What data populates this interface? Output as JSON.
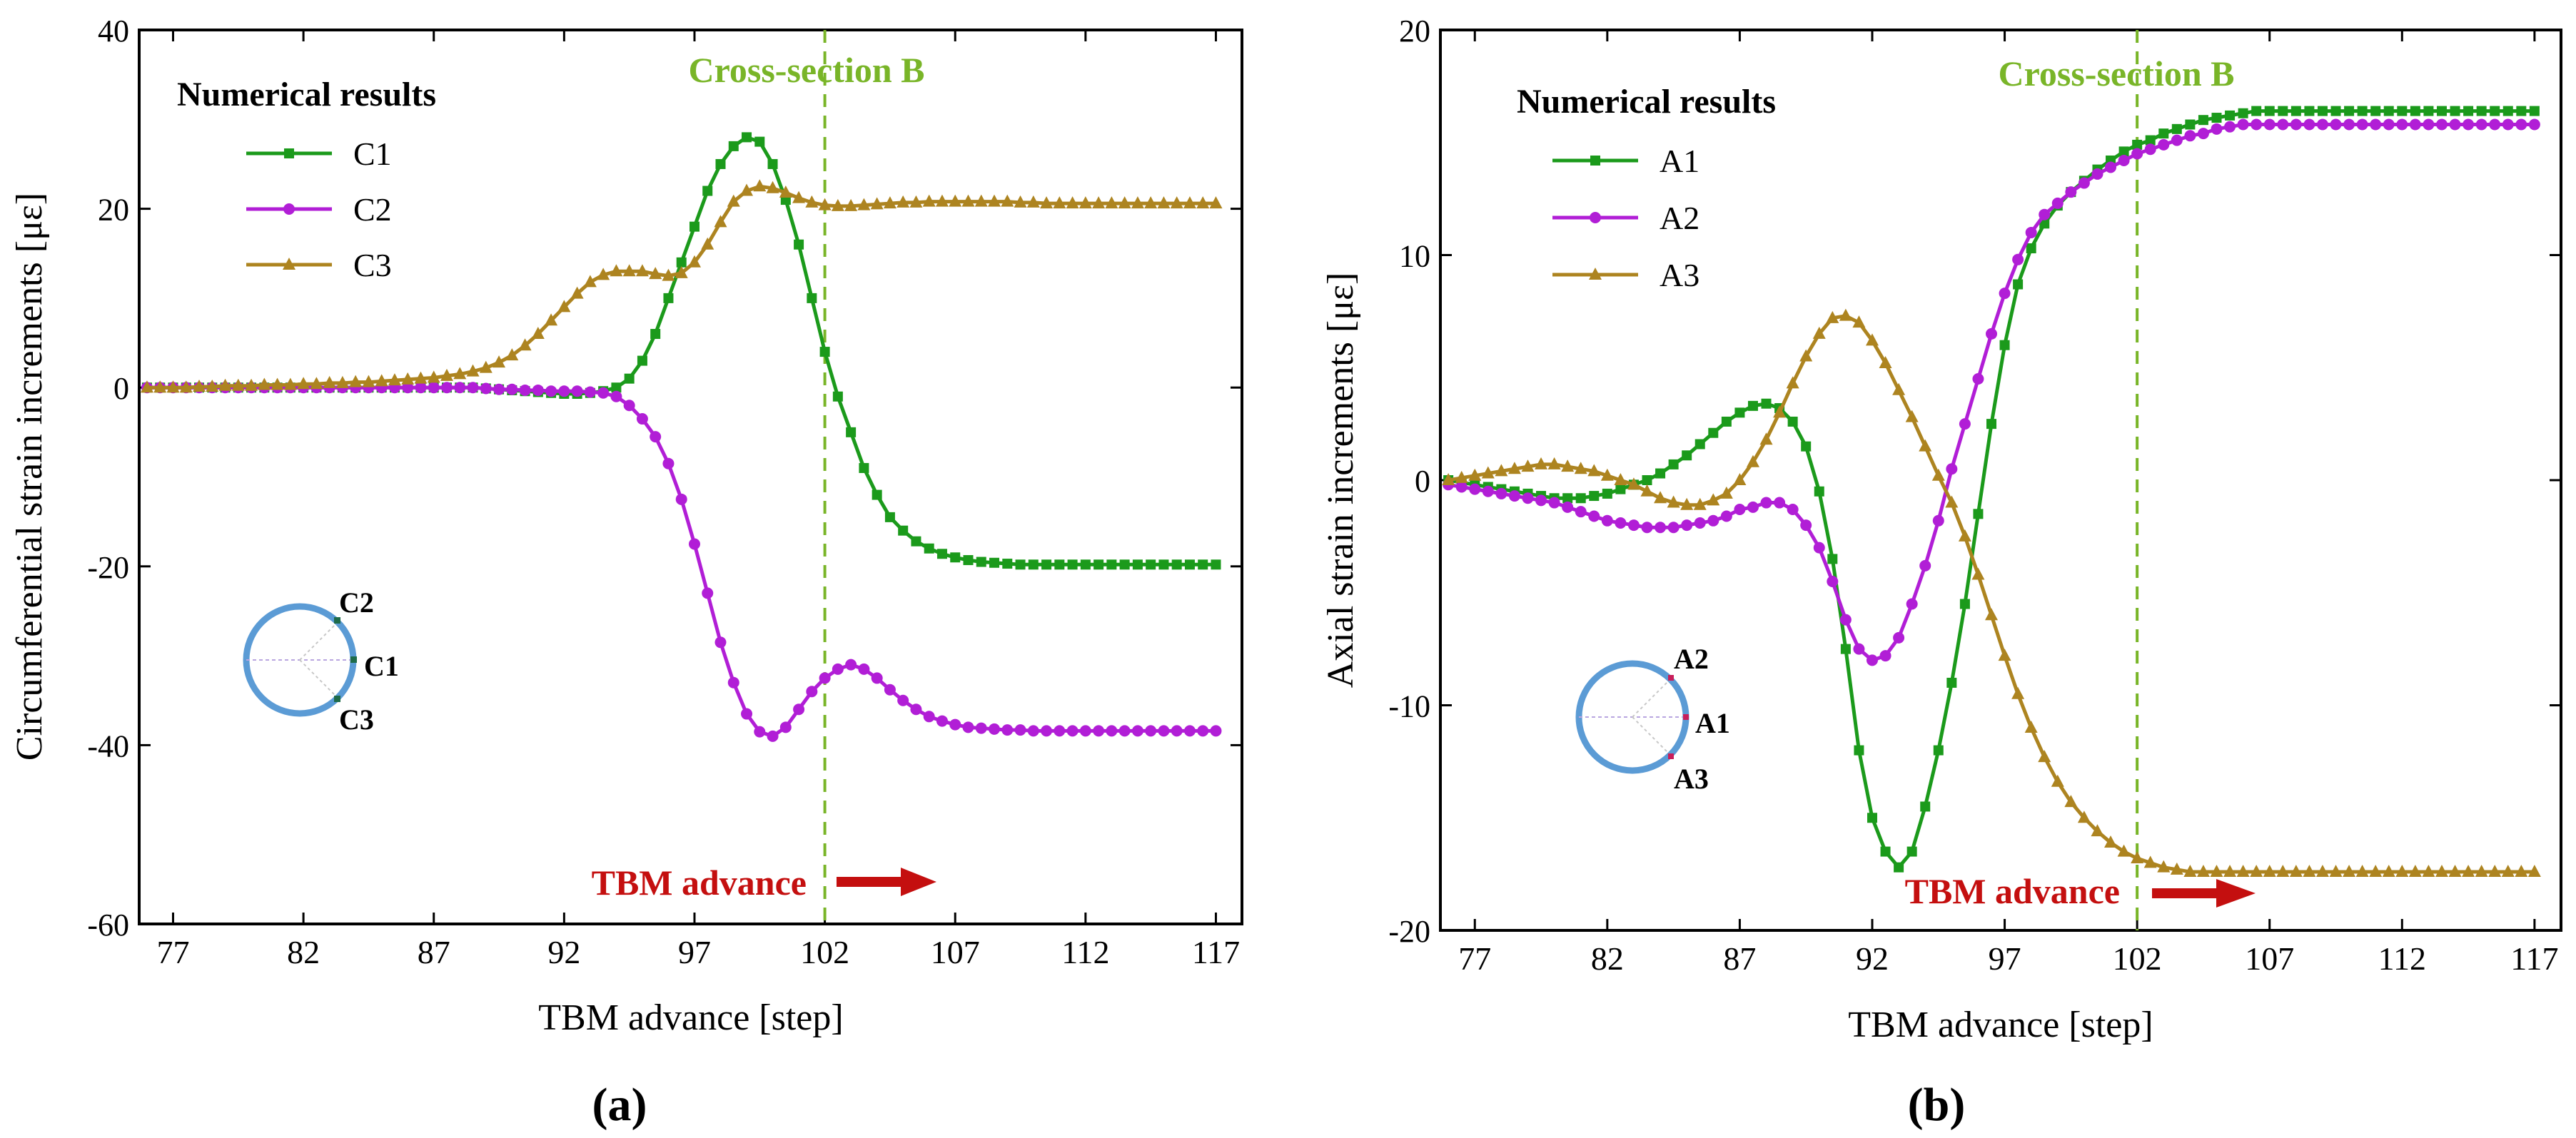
{
  "figure": {
    "panel_a": {
      "label": "(a)",
      "legend_title": "Numerical results",
      "section_label": "Cross-section B",
      "advance_label": "TBM advance",
      "sensors": [
        "C2",
        "C1",
        "C3"
      ]
    },
    "panel_b": {
      "label": "(b)",
      "legend_title": "Numerical results",
      "section_label": "Cross-section B",
      "advance_label": "TBM advance",
      "sensors": [
        "A2",
        "A1",
        "A3"
      ]
    }
  },
  "colors": {
    "green": "#1b9a1b",
    "purple": "#b11ed6",
    "gold": "#ad8420",
    "section_line": "#79b528",
    "arrow": "#c40f0f",
    "ring": "#5b9bd5"
  },
  "chart_data": [
    {
      "type": "line",
      "title": "",
      "xlabel": "TBM advance [step]",
      "ylabel": "Circumferential strain increments  [με]",
      "xlim": [
        75.7,
        118
      ],
      "ylim": [
        -60,
        40
      ],
      "xticks": [
        77,
        82,
        87,
        92,
        97,
        102,
        107,
        112,
        117
      ],
      "yticks": [
        40,
        20,
        0,
        -20,
        -40,
        -60
      ],
      "x_start": 76,
      "x_step": 0.5,
      "vline_x": 102,
      "legend_position": "top-left",
      "series": [
        {
          "name": "C1",
          "marker": "square",
          "color": "#1b9a1b",
          "values": [
            0,
            0,
            0,
            0,
            0,
            0,
            0,
            0,
            0,
            0,
            0,
            0,
            0,
            0,
            0,
            0,
            0,
            0,
            0,
            0,
            0,
            0,
            0,
            0,
            0,
            0,
            -0.1,
            -0.2,
            -0.3,
            -0.4,
            -0.5,
            -0.6,
            -0.7,
            -0.7,
            -0.6,
            -0.4,
            0,
            1,
            3,
            6,
            10,
            14,
            18,
            22,
            25,
            27,
            28,
            27.5,
            25,
            21,
            16,
            10,
            4,
            -1,
            -5,
            -9,
            -12,
            -14.5,
            -16,
            -17.2,
            -18,
            -18.6,
            -19,
            -19.3,
            -19.5,
            -19.6,
            -19.7,
            -19.8,
            -19.8,
            -19.8,
            -19.8,
            -19.8,
            -19.8,
            -19.8,
            -19.8,
            -19.8,
            -19.8,
            -19.8,
            -19.8,
            -19.8,
            -19.8,
            -19.8,
            -19.8
          ]
        },
        {
          "name": "C2",
          "marker": "circle",
          "color": "#b11ed6",
          "values": [
            0,
            0,
            0,
            0,
            0,
            0,
            0,
            0,
            0,
            0,
            0,
            0,
            0,
            0,
            0,
            0,
            0,
            0,
            0,
            0,
            0,
            0,
            0,
            0,
            0,
            0,
            -0.1,
            -0.2,
            -0.2,
            -0.3,
            -0.3,
            -0.4,
            -0.4,
            -0.4,
            -0.5,
            -0.6,
            -1,
            -2,
            -3.5,
            -5.5,
            -8.5,
            -12.5,
            -17.5,
            -23,
            -28.5,
            -33,
            -36.5,
            -38.5,
            -39,
            -38,
            -36,
            -34,
            -32.5,
            -31.5,
            -31,
            -31.5,
            -32.5,
            -33.8,
            -35,
            -36,
            -36.8,
            -37.3,
            -37.7,
            -38,
            -38.1,
            -38.2,
            -38.3,
            -38.3,
            -38.4,
            -38.4,
            -38.4,
            -38.4,
            -38.4,
            -38.4,
            -38.4,
            -38.4,
            -38.4,
            -38.4,
            -38.4,
            -38.4,
            -38.4,
            -38.4,
            -38.4
          ]
        },
        {
          "name": "C3",
          "marker": "triangle",
          "color": "#ad8420",
          "values": [
            0,
            0,
            0,
            0,
            0.1,
            0.1,
            0.2,
            0.2,
            0.2,
            0.3,
            0.3,
            0.3,
            0.4,
            0.4,
            0.5,
            0.5,
            0.6,
            0.6,
            0.7,
            0.8,
            0.9,
            1,
            1.1,
            1.3,
            1.5,
            1.8,
            2.2,
            2.8,
            3.6,
            4.7,
            6,
            7.5,
            9,
            10.5,
            11.8,
            12.6,
            13,
            13,
            13,
            12.7,
            12.5,
            12.8,
            14,
            16,
            18.5,
            20.8,
            22,
            22.5,
            22.3,
            21.8,
            21.2,
            20.7,
            20.4,
            20.3,
            20.3,
            20.4,
            20.5,
            20.6,
            20.7,
            20.7,
            20.8,
            20.8,
            20.8,
            20.8,
            20.8,
            20.8,
            20.8,
            20.7,
            20.7,
            20.6,
            20.6,
            20.6,
            20.6,
            20.6,
            20.6,
            20.6,
            20.6,
            20.6,
            20.6,
            20.6,
            20.6,
            20.6,
            20.6
          ]
        }
      ]
    },
    {
      "type": "line",
      "title": "",
      "xlabel": "TBM advance [step]",
      "ylabel": "Axial strain increments [με]",
      "xlim": [
        75.7,
        118
      ],
      "ylim": [
        -20,
        20
      ],
      "xticks": [
        77,
        82,
        87,
        92,
        97,
        102,
        107,
        112,
        117
      ],
      "yticks": [
        20,
        10,
        0,
        -10,
        -20
      ],
      "x_start": 76,
      "x_step": 0.5,
      "vline_x": 102,
      "legend_position": "top-left",
      "series": [
        {
          "name": "A1",
          "marker": "square",
          "color": "#1b9a1b",
          "values": [
            0,
            -0.1,
            -0.2,
            -0.3,
            -0.4,
            -0.5,
            -0.6,
            -0.7,
            -0.8,
            -0.8,
            -0.8,
            -0.7,
            -0.6,
            -0.4,
            -0.2,
            0,
            0.3,
            0.7,
            1.1,
            1.6,
            2.1,
            2.6,
            3,
            3.3,
            3.4,
            3.2,
            2.6,
            1.5,
            -0.5,
            -3.5,
            -7.5,
            -12,
            -15,
            -16.5,
            -17.2,
            -16.5,
            -14.5,
            -12,
            -9,
            -5.5,
            -1.5,
            2.5,
            6,
            8.7,
            10.3,
            11.4,
            12.2,
            12.8,
            13.3,
            13.8,
            14.2,
            14.6,
            14.9,
            15.1,
            15.4,
            15.6,
            15.8,
            16,
            16.1,
            16.2,
            16.3,
            16.4,
            16.4,
            16.4,
            16.4,
            16.4,
            16.4,
            16.4,
            16.4,
            16.4,
            16.4,
            16.4,
            16.4,
            16.4,
            16.4,
            16.4,
            16.4,
            16.4,
            16.4,
            16.4,
            16.4,
            16.4,
            16.4
          ]
        },
        {
          "name": "A2",
          "marker": "circle",
          "color": "#b11ed6",
          "values": [
            -0.2,
            -0.3,
            -0.4,
            -0.5,
            -0.6,
            -0.7,
            -0.8,
            -0.9,
            -1,
            -1.2,
            -1.4,
            -1.6,
            -1.8,
            -1.9,
            -2,
            -2.1,
            -2.1,
            -2.1,
            -2,
            -1.9,
            -1.8,
            -1.6,
            -1.3,
            -1.2,
            -1,
            -1,
            -1.3,
            -2,
            -3,
            -4.5,
            -6.2,
            -7.5,
            -8,
            -7.8,
            -7,
            -5.5,
            -3.8,
            -1.8,
            0.5,
            2.5,
            4.5,
            6.5,
            8.3,
            9.8,
            11,
            11.8,
            12.3,
            12.8,
            13.2,
            13.6,
            13.9,
            14.2,
            14.5,
            14.7,
            14.9,
            15.1,
            15.3,
            15.4,
            15.6,
            15.7,
            15.8,
            15.8,
            15.8,
            15.8,
            15.8,
            15.8,
            15.8,
            15.8,
            15.8,
            15.8,
            15.8,
            15.8,
            15.8,
            15.8,
            15.8,
            15.8,
            15.8,
            15.8,
            15.8,
            15.8,
            15.8,
            15.8,
            15.8
          ]
        },
        {
          "name": "A3",
          "marker": "triangle",
          "color": "#ad8420",
          "values": [
            0,
            0.1,
            0.2,
            0.3,
            0.4,
            0.5,
            0.6,
            0.7,
            0.7,
            0.6,
            0.5,
            0.4,
            0.2,
            0,
            -0.2,
            -0.5,
            -0.8,
            -1,
            -1.1,
            -1.1,
            -0.9,
            -0.6,
            0,
            0.8,
            1.8,
            3,
            4.3,
            5.5,
            6.5,
            7.2,
            7.3,
            7,
            6.2,
            5.2,
            4,
            2.8,
            1.5,
            0.2,
            -1,
            -2.5,
            -4.2,
            -6,
            -7.8,
            -9.5,
            -11,
            -12.3,
            -13.4,
            -14.3,
            -15,
            -15.6,
            -16.1,
            -16.5,
            -16.8,
            -17,
            -17.2,
            -17.3,
            -17.4,
            -17.4,
            -17.4,
            -17.4,
            -17.4,
            -17.4,
            -17.4,
            -17.4,
            -17.4,
            -17.4,
            -17.4,
            -17.4,
            -17.4,
            -17.4,
            -17.4,
            -17.4,
            -17.4,
            -17.4,
            -17.4,
            -17.4,
            -17.4,
            -17.4,
            -17.4,
            -17.4,
            -17.4,
            -17.4,
            -17.4
          ]
        }
      ]
    }
  ]
}
